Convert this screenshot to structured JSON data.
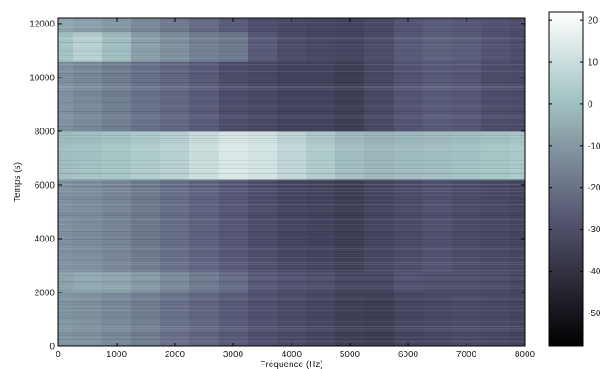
{
  "chart_data": {
    "type": "heatmap",
    "title": "",
    "xlabel": "Fréquence (Hz)",
    "ylabel": "Temps (s)",
    "xlim": [
      0,
      8000
    ],
    "ylim": [
      0,
      12200
    ],
    "xticks": [
      0,
      1000,
      2000,
      3000,
      4000,
      5000,
      6000,
      7000,
      8000
    ],
    "yticks": [
      0,
      2000,
      4000,
      6000,
      8000,
      10000,
      12000
    ],
    "colorbar": {
      "range": [
        -58,
        22
      ],
      "ticks": [
        20,
        10,
        0,
        -10,
        -20,
        -30,
        -40,
        -50
      ],
      "colormap": "bone"
    },
    "x_bins": [
      0,
      250,
      750,
      1250,
      1750,
      2250,
      2750,
      3250,
      3750,
      4250,
      4750,
      5250,
      5750,
      6250,
      6750,
      7250,
      7750,
      8000
    ],
    "y_bands": [
      {
        "y0": 0,
        "y1": 2000,
        "values": [
          -11,
          -12,
          -14,
          -17,
          -20,
          -23,
          -26,
          -29,
          -31,
          -33,
          -35,
          -36,
          -33,
          -32,
          -31,
          -32,
          -33
        ]
      },
      {
        "y0": 2000,
        "y1": 2800,
        "values": [
          -8,
          -6,
          -7,
          -10,
          -14,
          -18,
          -22,
          -27,
          -29,
          -30,
          -33,
          -33,
          -29,
          -30,
          -30,
          -31,
          -33
        ]
      },
      {
        "y0": 2800,
        "y1": 6200,
        "values": [
          -12,
          -13,
          -15,
          -18,
          -21,
          -24,
          -27,
          -30,
          -33,
          -34,
          -36,
          -33,
          -31,
          -29,
          -31,
          -32,
          -33
        ]
      },
      {
        "y0": 6200,
        "y1": 8000,
        "values": [
          0,
          1,
          2,
          4,
          6,
          10,
          14,
          12,
          8,
          4,
          0,
          -2,
          -1,
          0,
          1,
          2,
          3
        ]
      },
      {
        "y0": 8000,
        "y1": 10600,
        "values": [
          -12,
          -14,
          -17,
          -20,
          -23,
          -26,
          -30,
          -32,
          -34,
          -34,
          -36,
          -32,
          -28,
          -26,
          -27,
          -30,
          -31
        ]
      },
      {
        "y0": 10600,
        "y1": 11700,
        "values": [
          2,
          6,
          0,
          -8,
          -12,
          -16,
          -18,
          -26,
          -30,
          -32,
          -33,
          -30,
          -26,
          -24,
          -25,
          -28,
          -30
        ]
      },
      {
        "y0": 11700,
        "y1": 12200,
        "values": [
          -6,
          -8,
          -10,
          -14,
          -18,
          -22,
          -26,
          -30,
          -32,
          -33,
          -34,
          -32,
          -28,
          -26,
          -27,
          -29,
          -30
        ]
      }
    ]
  }
}
